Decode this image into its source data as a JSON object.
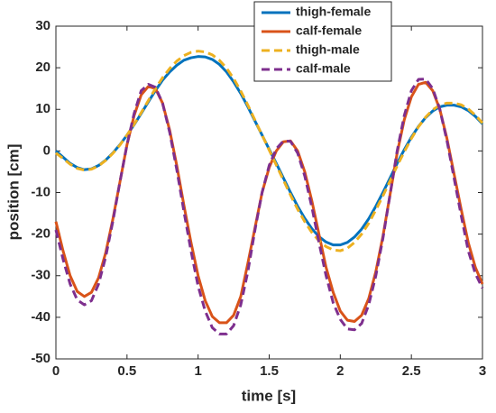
{
  "chart_data": {
    "type": "line",
    "xlabel": "time [s]",
    "ylabel": "position [cm]",
    "x": [
      0,
      0.05,
      0.1,
      0.15,
      0.2,
      0.25,
      0.3,
      0.35,
      0.4,
      0.45,
      0.5,
      0.55,
      0.6,
      0.65,
      0.7,
      0.75,
      0.8,
      0.85,
      0.9,
      0.95,
      1,
      1.05,
      1.1,
      1.15,
      1.2,
      1.25,
      1.3,
      1.35,
      1.4,
      1.45,
      1.5,
      1.55,
      1.6,
      1.65,
      1.7,
      1.75,
      1.8,
      1.85,
      1.9,
      1.95,
      2,
      2.05,
      2.1,
      2.15,
      2.2,
      2.25,
      2.3,
      2.35,
      2.4,
      2.45,
      2.5,
      2.55,
      2.6,
      2.65,
      2.7,
      2.75,
      2.8,
      2.85,
      2.9,
      2.95,
      3
    ],
    "series": [
      {
        "name": "thigh-female",
        "color": "#0072BD",
        "style": "solid",
        "values": [
          0,
          -1.5,
          -3,
          -4,
          -4.5,
          -4.3,
          -3.5,
          -2.2,
          -0.5,
          1.5,
          3.8,
          6.3,
          9,
          11.8,
          14.5,
          17,
          19,
          20.6,
          21.8,
          22.4,
          22.7,
          22.6,
          22,
          20.8,
          19,
          16.6,
          13.8,
          10.6,
          7.2,
          3.8,
          0.4,
          -3,
          -6.5,
          -10,
          -13.3,
          -16.2,
          -18.7,
          -20.6,
          -21.9,
          -22.6,
          -22.6,
          -22,
          -20.7,
          -18.8,
          -16.3,
          -13.3,
          -10,
          -6.5,
          -3,
          0.3,
          3.3,
          5.9,
          8,
          9.6,
          10.6,
          11,
          11,
          10.6,
          9.7,
          8.3,
          6.5
        ]
      },
      {
        "name": "calf-female",
        "color": "#D95319",
        "style": "solid",
        "values": [
          -17,
          -24,
          -30,
          -33.8,
          -35,
          -34,
          -30.5,
          -24.5,
          -16.5,
          -7.5,
          1.5,
          8.5,
          13.5,
          15.5,
          15,
          11.5,
          5,
          -3.5,
          -13,
          -22,
          -30,
          -36,
          -39.8,
          -41.3,
          -41.3,
          -39.5,
          -35,
          -27,
          -18.5,
          -10,
          -4,
          0,
          2.2,
          2.4,
          0,
          -5,
          -12,
          -20,
          -28,
          -34,
          -38.5,
          -40.7,
          -41,
          -39.5,
          -35.5,
          -29,
          -20.5,
          -10.5,
          -0.5,
          7.5,
          13,
          16,
          16.5,
          14.5,
          10,
          3,
          -5.5,
          -14,
          -22,
          -28,
          -32
        ]
      },
      {
        "name": "thigh-male",
        "color": "#EDB120",
        "style": "dashed",
        "values": [
          -0.5,
          -1.8,
          -3.2,
          -4.2,
          -4.6,
          -4.4,
          -3.6,
          -2.3,
          -0.6,
          1.4,
          3.8,
          6.4,
          9.2,
          12.1,
          15,
          17.6,
          19.8,
          21.6,
          22.9,
          23.7,
          24,
          23.8,
          23.1,
          21.8,
          19.9,
          17.4,
          14.4,
          11,
          7.4,
          3.8,
          0.2,
          -3.4,
          -7,
          -10.6,
          -14,
          -17,
          -19.6,
          -21.6,
          -23,
          -23.8,
          -24,
          -23.4,
          -22,
          -20,
          -17.4,
          -14.2,
          -10.8,
          -7.2,
          -3.6,
          -0.2,
          3,
          5.8,
          8.1,
          9.9,
          11,
          11.5,
          11.5,
          11.1,
          10.1,
          8.6,
          6.7
        ]
      },
      {
        "name": "calf-male",
        "color": "#7E2F8E",
        "style": "dashed",
        "values": [
          -19,
          -26,
          -32,
          -35.8,
          -37,
          -36,
          -32,
          -25.5,
          -17,
          -7.5,
          1.5,
          9,
          14.5,
          16,
          15.3,
          11.5,
          4.5,
          -4.5,
          -14.5,
          -24,
          -32.5,
          -38.5,
          -42.5,
          -44,
          -44,
          -42,
          -37,
          -29,
          -19,
          -10,
          -3.5,
          0.5,
          2.4,
          2.3,
          -0.5,
          -6,
          -13.5,
          -22,
          -30,
          -36.5,
          -40.5,
          -42.8,
          -43,
          -41.5,
          -37,
          -30,
          -21,
          -10.5,
          0,
          8.5,
          14.5,
          17.2,
          17.3,
          15,
          10,
          2.5,
          -6.5,
          -15.5,
          -24,
          -29.5,
          -33
        ]
      }
    ],
    "xlim": [
      0,
      3
    ],
    "xticks": [
      0,
      0.5,
      1,
      1.5,
      2,
      2.5,
      3
    ],
    "ylim": [
      -50,
      30
    ],
    "yticks": [
      -50,
      -40,
      -30,
      -20,
      -10,
      0,
      10,
      20,
      30
    ],
    "grid": false,
    "legend": "northeast"
  }
}
